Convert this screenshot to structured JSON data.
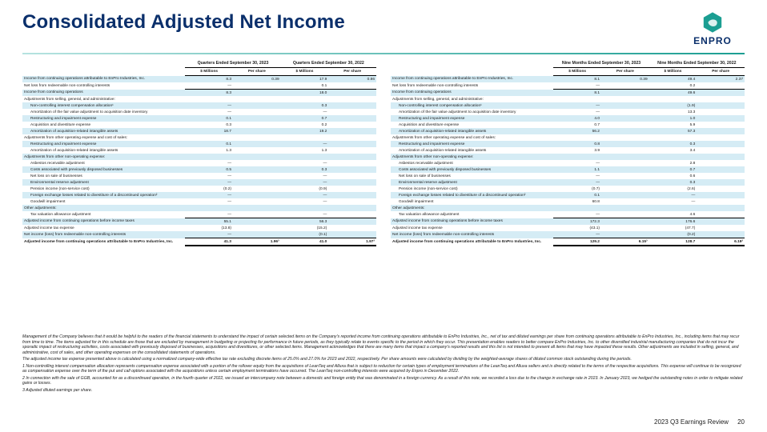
{
  "title": "Consolidated Adjusted Net Income",
  "logo": {
    "brand": "ENPRO",
    "icon_color": "#1b9e92",
    "icon_stroke": "#0a2f6b"
  },
  "footer": {
    "tag": "2023 Q3 Earnings Review",
    "page": "20"
  },
  "table_left": {
    "top_headers": [
      "Quarters Ended September 30, 2023",
      "Quarters Ended September 30, 2022"
    ],
    "sub_headers": [
      "$ Millions",
      "Per share",
      "$ Millions",
      "Per share"
    ],
    "rows": [
      {
        "l": "Income from continuing operations attributable to EnPro Industries, Inc.",
        "v": [
          "8.3",
          "0.39",
          "17.9",
          "0.86"
        ],
        "zebra": true
      },
      {
        "l": "Net loss from redeemable non-controlling interests",
        "v": [
          "—",
          "",
          "0.1",
          ""
        ]
      },
      {
        "l": "Income from continuing operations",
        "v": [
          "8.3",
          "",
          "18.0",
          ""
        ],
        "zebra": true,
        "top": true
      },
      {
        "l": "Adjustments from selling, general, and administrative:",
        "v": [
          "",
          "",
          "",
          ""
        ]
      },
      {
        "l": "  Non-controlling interest compensation allocation¹",
        "v": [
          "—",
          "",
          "0.3",
          ""
        ],
        "zebra": true
      },
      {
        "l": "  Amortization of the fair value adjustment to acquisition date inventory",
        "v": [
          "—",
          "",
          "—",
          ""
        ]
      },
      {
        "l": "  Restructuring and impairment expense",
        "v": [
          "0.1",
          "",
          "0.7",
          ""
        ],
        "zebra": true
      },
      {
        "l": "  Acquisition and divestiture expense",
        "v": [
          "0.3",
          "",
          "0.2",
          ""
        ]
      },
      {
        "l": "  Amortization of acquisition-related intangible assets",
        "v": [
          "18.7",
          "",
          "19.2",
          ""
        ],
        "zebra": true
      },
      {
        "l": "Adjustments from other operating expense and cost of sales:",
        "v": [
          "",
          "",
          "",
          ""
        ]
      },
      {
        "l": "  Restructuring and impairment expense",
        "v": [
          "0.1",
          "",
          "—",
          ""
        ],
        "zebra": true
      },
      {
        "l": "  Amortization of acquisition-related intangible assets",
        "v": [
          "1.3",
          "",
          "1.3",
          ""
        ]
      },
      {
        "l": "Adjustments from other non-operating expense:",
        "v": [
          "",
          "",
          "",
          ""
        ],
        "zebra": true
      },
      {
        "l": "  Asbestos receivable adjustment",
        "v": [
          "—",
          "",
          "—",
          ""
        ]
      },
      {
        "l": "  Costs associated with previously disposed businesses",
        "v": [
          "0.5",
          "",
          "0.3",
          ""
        ],
        "zebra": true
      },
      {
        "l": "  Net loss on sale of businesses",
        "v": [
          "—",
          "",
          "—",
          ""
        ]
      },
      {
        "l": "  Environmental reserve adjustment",
        "v": [
          "—",
          "",
          "—",
          ""
        ],
        "zebra": true
      },
      {
        "l": "  Pension income (non-service cost)",
        "v": [
          "(0.2)",
          "",
          "(0.9)",
          ""
        ]
      },
      {
        "l": "  Foreign exchange losses related to divestiture of a discontinued operation²",
        "v": [
          "—",
          "",
          "—",
          ""
        ],
        "zebra": true
      },
      {
        "l": "  Goodwill impairment",
        "v": [
          "—",
          "",
          "—",
          ""
        ]
      },
      {
        "l": "Other adjustments:",
        "v": [
          "",
          "",
          "",
          ""
        ],
        "zebra": true
      },
      {
        "l": "  Tax valuation allowance adjustment",
        "v": [
          "—",
          "",
          "—",
          ""
        ]
      },
      {
        "l": "Adjusted income from continuing operations before income taxes",
        "v": [
          "55.1",
          "",
          "56.3",
          ""
        ],
        "zebra": true,
        "top": true
      },
      {
        "l": "Adjusted income tax expense",
        "v": [
          "(13.8)",
          "",
          "(15.2)",
          ""
        ]
      },
      {
        "l": "Net income (loss) from redeemable non-controlling interests",
        "v": [
          "—",
          "",
          "(0.1)",
          ""
        ],
        "zebra": true
      },
      {
        "l": "Adjusted income from continuing operations attributable to EnPro Industries, Inc.",
        "v": [
          "41.3",
          "1.96³",
          "41.0",
          "1.97³"
        ],
        "bold": true,
        "top": true,
        "bot": true
      }
    ]
  },
  "table_right": {
    "top_headers": [
      "Nine Months Ended September 30, 2023",
      "Nine Months Ended September 30, 2022"
    ],
    "sub_headers": [
      "$ Millions",
      "Per share",
      "$ Millions",
      "Per share"
    ],
    "rows": [
      {
        "l": "Income from continuing operations attributable to EnPro Industries, Inc.",
        "v": [
          "8.1",
          "0.39",
          "49.4",
          "2.37"
        ],
        "zebra": true
      },
      {
        "l": "Net loss from redeemable non-controlling interests",
        "v": [
          "—",
          "",
          "0.2",
          ""
        ]
      },
      {
        "l": "Income from continuing operations",
        "v": [
          "8.1",
          "",
          "49.6",
          ""
        ],
        "zebra": true,
        "top": true
      },
      {
        "l": "Adjustments from selling, general, and administrative:",
        "v": [
          "",
          "",
          "",
          ""
        ]
      },
      {
        "l": "  Non-controlling interest compensation allocation¹",
        "v": [
          "—",
          "",
          "(1.9)",
          ""
        ],
        "zebra": true
      },
      {
        "l": "  Amortization of the fair value adjustment to acquisition date inventory",
        "v": [
          "—",
          "",
          "13.3",
          ""
        ]
      },
      {
        "l": "  Restructuring and impairment expense",
        "v": [
          "4.0",
          "",
          "1.0",
          ""
        ],
        "zebra": true
      },
      {
        "l": "  Acquisition and divestiture expense",
        "v": [
          "0.7",
          "",
          "5.9",
          ""
        ]
      },
      {
        "l": "  Amortization of acquisition-related intangible assets",
        "v": [
          "56.2",
          "",
          "57.3",
          ""
        ],
        "zebra": true
      },
      {
        "l": "Adjustments from other operating expense and cost of sales:",
        "v": [
          "",
          "",
          "",
          ""
        ]
      },
      {
        "l": "  Restructuring and impairment expense",
        "v": [
          "0.8",
          "",
          "0.3",
          ""
        ],
        "zebra": true
      },
      {
        "l": "  Amortization of acquisition-related intangible assets",
        "v": [
          "3.9",
          "",
          "3.4",
          ""
        ]
      },
      {
        "l": "Adjustments from other non-operating expense:",
        "v": [
          "",
          "",
          "",
          ""
        ],
        "zebra": true
      },
      {
        "l": "  Asbestos receivable adjustment",
        "v": [
          "—",
          "",
          "2.8",
          ""
        ]
      },
      {
        "l": "  Costs associated with previously disposed businesses",
        "v": [
          "1.1",
          "",
          "0.7",
          ""
        ],
        "zebra": true
      },
      {
        "l": "  Net loss on sale of businesses",
        "v": [
          "—",
          "",
          "0.6",
          ""
        ]
      },
      {
        "l": "  Environmental reserve adjustment",
        "v": [
          "—",
          "",
          "0.3",
          ""
        ],
        "zebra": true
      },
      {
        "l": "  Pension income (non-service cost)",
        "v": [
          "(0.7)",
          "",
          "(2.6)",
          ""
        ]
      },
      {
        "l": "  Foreign exchange losses related to divestiture of a discontinued operation²",
        "v": [
          "0.1",
          "",
          "—",
          ""
        ],
        "zebra": true
      },
      {
        "l": "  Goodwill impairment",
        "v": [
          "60.8",
          "",
          "—",
          ""
        ]
      },
      {
        "l": "Other adjustments:",
        "v": [
          "",
          "",
          "",
          ""
        ],
        "zebra": true
      },
      {
        "l": "  Tax valuation allowance adjustment",
        "v": [
          "—",
          "",
          "4.6",
          ""
        ]
      },
      {
        "l": "Adjusted income from continuing operations before income taxes",
        "v": [
          "172.3",
          "",
          "176.6",
          ""
        ],
        "zebra": true,
        "top": true
      },
      {
        "l": "Adjusted income tax expense",
        "v": [
          "(43.1)",
          "",
          "(47.7)",
          ""
        ]
      },
      {
        "l": "Net income (loss) from redeemable non-controlling interests",
        "v": [
          "—",
          "",
          "(0.2)",
          ""
        ],
        "zebra": true
      },
      {
        "l": "Adjusted income from continuing operations attributable to EnPro Industries, Inc.",
        "v": [
          "129.2",
          "6.15³",
          "128.7",
          "6.19³"
        ],
        "bold": true,
        "top": true,
        "bot": true
      }
    ]
  },
  "footnotes": [
    "Management of the Company believes that it would be helpful to the readers of the financial statements to understand the impact of certain selected items on the Company's reported income from continuing operations attributable to EnPro Industries, Inc., net of tax and diluted earnings per share from continuing operations attributable to EnPro Industries, Inc., including items that may recur from time to time.  The items adjusted for in this schedule are those that are excluded by management in budgeting or projecting for performance in future periods, as they typically relate to events specific to the period in which they occur. This presentation enables readers to better compare EnPro Industries, Inc. to other diversified industrial manufacturing companies that do not incur the sporadic impact of restructuring activities, costs associated with previously disposed of businesses, acquisitions and divestitures, or other selected items. Management acknowledges that there are many items that impact a company's reported results and this list is not intended to present all items that may have impacted these results.  Other adjustments are included in selling, general, and administrative, cost of sales, and other operating expenses on the consolidated statements of operations.",
    "The adjusted income tax expense presented above is calculated using a normalized company-wide effective tax rate excluding discrete items of 25.0% and 27.0% for 2023 and 2022, respectively.  Per share amounts were calculated by dividing by the weighted-average shares of diluted common stock outstanding during the periods.",
    "1 Non-controlling interest compensation allocation represents compensation expense associated with a portion of the rollover equity from the acquisitions of LeanTeq and Alluxa that is subject to reduction for certain types of employment terminations of the LeanTeq and Alluxa sellers and is directly related to the terms of the respective acquisitions. This expense will continue to be recognized as compensation expense over the term of the put and call options associated with the acquisitions unless certain employment terminations have occurred.  The LeanTeq non-controlling interests were acquired by Enpro in December 2022.",
    "2 In connection with the sale of GGB, accounted for as a discontinued operation, in the fourth quarter of 2022, we issued an intercompany note between a domestic and foreign entity that was denominated in a foreign currency. As a result of this note, we recorded a loss due to the change in exchange rate in 2023. In January 2023, we hedged the outstanding notes in order to mitigate related gains or losses.",
    "3 Adjusted diluted earnings per share."
  ],
  "colors": {
    "zebra": "#d5ecf5",
    "title": "#0a2f6b",
    "rule_start": "#b6e3e0",
    "rule_end": "#1b9e92"
  }
}
